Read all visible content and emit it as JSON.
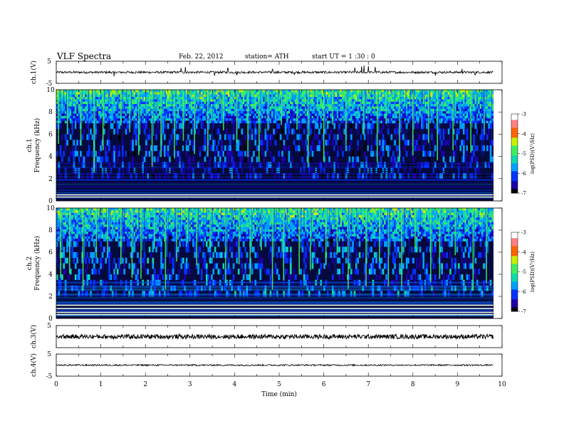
{
  "header": {
    "title": "VLF  Spectra",
    "date": "Feb. 22, 2012",
    "station": "station= ATH",
    "start": "start  UT  =   1  :30 : 0"
  },
  "colors": {
    "axis": "#000000",
    "spectro_background": "#050a3c",
    "colormap": [
      "#000000",
      "#1c00a8",
      "#0033ff",
      "#00a0ff",
      "#10d8b0",
      "#40ee60",
      "#c8f000",
      "#ff6400",
      "#ff8080",
      "#ffffff"
    ]
  },
  "chart_data": [
    {
      "type": "line",
      "name": "ch1",
      "ylabel": "ch.1(V)",
      "ylim": [
        -5,
        5
      ],
      "yticks": [
        "5",
        "-5"
      ],
      "xlim": [
        0,
        9.8
      ],
      "baseline": 0,
      "noise_amplitude": 0.5,
      "spike_times": [
        1.3,
        2.8,
        2.9,
        3.55,
        3.85,
        4.05,
        4.85,
        5.35,
        6.7,
        6.85,
        6.9,
        7.0,
        7.15,
        8.5,
        9.1,
        9.4
      ],
      "spike_heights": [
        -1.8,
        2.0,
        2.4,
        -1.6,
        1.9,
        -1.3,
        1.4,
        -1.2,
        2.2,
        2.7,
        3.0,
        2.8,
        2.5,
        -1.5,
        1.6,
        -1.4
      ],
      "grid": false
    },
    {
      "type": "heatmap",
      "name": "ch1",
      "ylabel": "ch.1\nFrequency (kHz)",
      "ylim": [
        0,
        10
      ],
      "yticks": [
        "0",
        "2",
        "4",
        "6",
        "8",
        "10"
      ],
      "xlim": [
        0,
        9.8
      ],
      "colorbar_label": "log(PSD)(V²/Hz)",
      "colorbar_range": [
        -7,
        -3
      ],
      "colorbar_ticks": [
        "-3",
        "-4",
        "-5",
        "-6",
        "-7"
      ],
      "strong_lines_khz": [
        0.35,
        0.55
      ],
      "hf_band_khz": [
        7,
        10
      ],
      "hf_level": -5,
      "mid_level": -6.5,
      "low_level": -7,
      "bursts": [
        0.05,
        0.25,
        0.55,
        0.85,
        1.05,
        1.45,
        1.65,
        1.85,
        2.15,
        2.35,
        2.65,
        2.85,
        3.1,
        3.4,
        3.75,
        4.05,
        4.3,
        4.55,
        4.75,
        5.05,
        5.4,
        5.65,
        6.0,
        6.2,
        6.5,
        6.9,
        7.2,
        7.4,
        7.7,
        8.0,
        8.35,
        8.55,
        8.9,
        9.3,
        9.6
      ]
    },
    {
      "type": "heatmap",
      "name": "ch2",
      "ylabel": "ch.2\nFrequency (kHz)",
      "ylim": [
        0,
        10
      ],
      "yticks": [
        "0",
        "2",
        "4",
        "6",
        "8",
        "10"
      ],
      "xlim": [
        0,
        9.8
      ],
      "colorbar_label": "log(PSD)(V²/Hz)",
      "colorbar_range": [
        -7,
        -3
      ],
      "colorbar_ticks": [
        "-3",
        "-4",
        "-5",
        "-6",
        "-7"
      ],
      "strong_lines_khz": [
        0.35,
        0.55,
        0.9,
        1.2
      ],
      "hf_band_khz": [
        7,
        10
      ],
      "hf_level": -5,
      "mid_level": -6.3,
      "low_level": -6.6,
      "bursts": [
        0.1,
        0.3,
        0.6,
        0.9,
        1.15,
        1.45,
        1.7,
        1.9,
        2.2,
        2.45,
        2.7,
        2.95,
        3.15,
        3.45,
        3.8,
        4.1,
        4.35,
        4.6,
        4.85,
        5.1,
        5.45,
        5.7,
        6.05,
        6.3,
        6.55,
        6.95,
        7.25,
        7.45,
        7.75,
        8.05,
        8.4,
        8.6,
        8.95,
        9.35,
        9.65
      ]
    },
    {
      "type": "line",
      "name": "ch3",
      "ylabel": "ch.3(V)",
      "ylim": [
        -5,
        5
      ],
      "yticks": [
        "5"
      ],
      "xlim": [
        0,
        9.8
      ],
      "baseline": 0,
      "noise_amplitude": 1.0,
      "grid": false
    },
    {
      "type": "line",
      "name": "ch4",
      "ylabel": "ch.4(V)",
      "ylim": [
        -5,
        5
      ],
      "yticks": [
        "5",
        "-5"
      ],
      "xlim": [
        0,
        9.8
      ],
      "baseline": 0,
      "noise_amplitude": 0.35,
      "grid": false
    }
  ],
  "x_axis": {
    "xlabel": "Time (min)",
    "xlim": [
      0,
      10
    ],
    "ticks": [
      "0",
      "1",
      "2",
      "3",
      "4",
      "5",
      "6",
      "7",
      "8",
      "9",
      "10"
    ]
  }
}
